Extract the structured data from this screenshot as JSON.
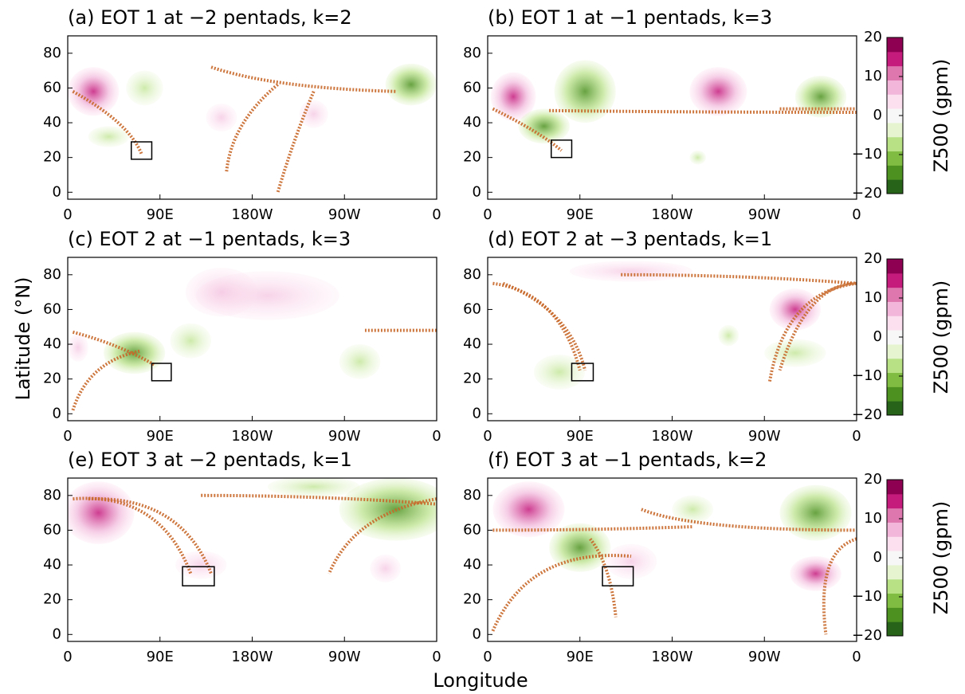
{
  "axis_labels": {
    "x": "Longitude",
    "y": "Latitude (°N)"
  },
  "chart_data": [
    {
      "type": "map",
      "title": "(a) EOT 1 at −2 pentads, k=2",
      "xlim": [
        0,
        360
      ],
      "ylim": [
        -4,
        90
      ],
      "xticks": [
        0,
        {
          "value": 90,
          "label": "90E"
        },
        {
          "value": 180,
          "label": "180W"
        },
        {
          "value": 270,
          "label": "90W"
        },
        {
          "value": 360,
          "label": "0"
        }
      ],
      "yticks": [
        0,
        20,
        40,
        60,
        80
      ],
      "box": {
        "lon": [
          62,
          82
        ],
        "lat": [
          19,
          29
        ]
      }
    },
    {
      "type": "map",
      "title": "(b) EOT 1 at −1 pentads, k=3",
      "xlim": [
        0,
        360
      ],
      "ylim": [
        -4,
        90
      ],
      "xticks": [
        0,
        {
          "value": 90,
          "label": "90E"
        },
        {
          "value": 180,
          "label": "180W"
        },
        {
          "value": 270,
          "label": "90W"
        },
        {
          "value": 360,
          "label": "0"
        }
      ],
      "yticks": [
        0,
        20,
        40,
        60,
        80
      ],
      "box": {
        "lon": [
          62,
          82
        ],
        "lat": [
          20,
          30
        ]
      },
      "colorbar": {
        "label": "Z500 (gpm)",
        "lim": [
          -20,
          20
        ],
        "ticks": [
          {
            "value": -20,
            "label": "−20"
          },
          {
            "value": -10,
            "label": "−10"
          },
          0,
          10,
          20
        ],
        "colors": [
          "#276419",
          "#4d9221",
          "#7fbc41",
          "#b8e186",
          "#e6f5d0",
          "#f7f7f7",
          "#fde0ef",
          "#f1b6da",
          "#de77ae",
          "#c51b7d",
          "#8e0152"
        ]
      }
    },
    {
      "type": "map",
      "title": "(c) EOT 2 at −1 pentads, k=3",
      "xlim": [
        0,
        360
      ],
      "ylim": [
        -4,
        90
      ],
      "xticks": [
        0,
        {
          "value": 90,
          "label": "90E"
        },
        {
          "value": 180,
          "label": "180W"
        },
        {
          "value": 270,
          "label": "90W"
        },
        {
          "value": 360,
          "label": "0"
        }
      ],
      "yticks": [
        0,
        20,
        40,
        60,
        80
      ],
      "box": {
        "lon": [
          82,
          101
        ],
        "lat": [
          19,
          29
        ]
      }
    },
    {
      "type": "map",
      "title": "(d) EOT 2 at −3 pentads, k=1",
      "xlim": [
        0,
        360
      ],
      "ylim": [
        -4,
        90
      ],
      "xticks": [
        0,
        {
          "value": 90,
          "label": "90E"
        },
        {
          "value": 180,
          "label": "180W"
        },
        {
          "value": 270,
          "label": "90W"
        },
        {
          "value": 360,
          "label": "0"
        }
      ],
      "yticks": [
        0,
        20,
        40,
        60,
        80
      ],
      "box": {
        "lon": [
          82,
          103
        ],
        "lat": [
          19,
          29
        ]
      },
      "colorbar": {
        "label": "Z500 (gpm)",
        "lim": [
          -20,
          20
        ],
        "ticks": [
          {
            "value": -20,
            "label": "−20"
          },
          {
            "value": -10,
            "label": "−10"
          },
          0,
          10,
          20
        ],
        "colors": [
          "#276419",
          "#4d9221",
          "#7fbc41",
          "#b8e186",
          "#e6f5d0",
          "#f7f7f7",
          "#fde0ef",
          "#f1b6da",
          "#de77ae",
          "#c51b7d",
          "#8e0152"
        ]
      }
    },
    {
      "type": "map",
      "title": "(e) EOT 3 at −2 pentads, k=1",
      "xlim": [
        0,
        360
      ],
      "ylim": [
        -4,
        90
      ],
      "xticks": [
        0,
        {
          "value": 90,
          "label": "90E"
        },
        {
          "value": 180,
          "label": "180W"
        },
        {
          "value": 270,
          "label": "90W"
        },
        {
          "value": 360,
          "label": "0"
        }
      ],
      "yticks": [
        0,
        20,
        40,
        60,
        80
      ],
      "box": {
        "lon": [
          112,
          143
        ],
        "lat": [
          28,
          39
        ]
      }
    },
    {
      "type": "map",
      "title": "(f) EOT 3 at −1 pentads, k=2",
      "xlim": [
        0,
        360
      ],
      "ylim": [
        -4,
        90
      ],
      "xticks": [
        0,
        {
          "value": 90,
          "label": "90E"
        },
        {
          "value": 180,
          "label": "180W"
        },
        {
          "value": 270,
          "label": "90W"
        },
        {
          "value": 360,
          "label": "0"
        }
      ],
      "yticks": [
        0,
        20,
        40,
        60,
        80
      ],
      "box": {
        "lon": [
          112,
          142
        ],
        "lat": [
          28,
          39
        ]
      },
      "colorbar": {
        "label": "Z500 (gpm)",
        "lim": [
          -20,
          20
        ],
        "ticks": [
          {
            "value": -20,
            "label": "−20"
          },
          {
            "value": -10,
            "label": "−10"
          },
          0,
          10,
          20
        ],
        "colors": [
          "#276419",
          "#4d9221",
          "#7fbc41",
          "#b8e186",
          "#e6f5d0",
          "#f7f7f7",
          "#fde0ef",
          "#f1b6da",
          "#de77ae",
          "#c51b7d",
          "#8e0152"
        ]
      }
    }
  ]
}
